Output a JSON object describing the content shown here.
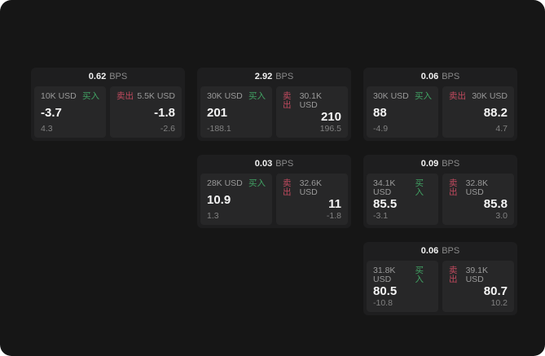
{
  "labels": {
    "buy": "买入",
    "sell": "卖出",
    "bps_unit": "BPS"
  },
  "colors": {
    "screen_background": "#161616",
    "card_background": "#1e1e1f",
    "panel_background": "#272728",
    "buy_accent": "#41a263",
    "sell_accent": "#c04a5e",
    "primary_text": "#f5f5f5",
    "muted_text": "#8a8a8a"
  },
  "cards": [
    {
      "bps": "0.62",
      "buy": {
        "notional": "10K USD",
        "price": "-3.7",
        "delta": "4.3"
      },
      "sell": {
        "notional": "5.5K USD",
        "price": "-1.8",
        "delta": "-2.6"
      }
    },
    {
      "bps": "2.92",
      "buy": {
        "notional": "30K USD",
        "price": "201",
        "delta": "-188.1"
      },
      "sell": {
        "notional": "30.1K USD",
        "price": "210",
        "delta": "196.5"
      }
    },
    {
      "bps": "0.06",
      "buy": {
        "notional": "30K USD",
        "price": "88",
        "delta": "-4.9"
      },
      "sell": {
        "notional": "30K USD",
        "price": "88.2",
        "delta": "4.7"
      }
    },
    {
      "bps": "0.03",
      "buy": {
        "notional": "28K USD",
        "price": "10.9",
        "delta": "1.3"
      },
      "sell": {
        "notional": "32.6K USD",
        "price": "11",
        "delta": "-1.8"
      }
    },
    {
      "bps": "0.09",
      "buy": {
        "notional": "34.1K USD",
        "price": "85.5",
        "delta": "-3.1"
      },
      "sell": {
        "notional": "32.8K USD",
        "price": "85.8",
        "delta": "3.0"
      }
    },
    {
      "bps": "0.06",
      "buy": {
        "notional": "31.8K USD",
        "price": "80.5",
        "delta": "-10.8"
      },
      "sell": {
        "notional": "39.1K USD",
        "price": "80.7",
        "delta": "10.2"
      }
    }
  ]
}
